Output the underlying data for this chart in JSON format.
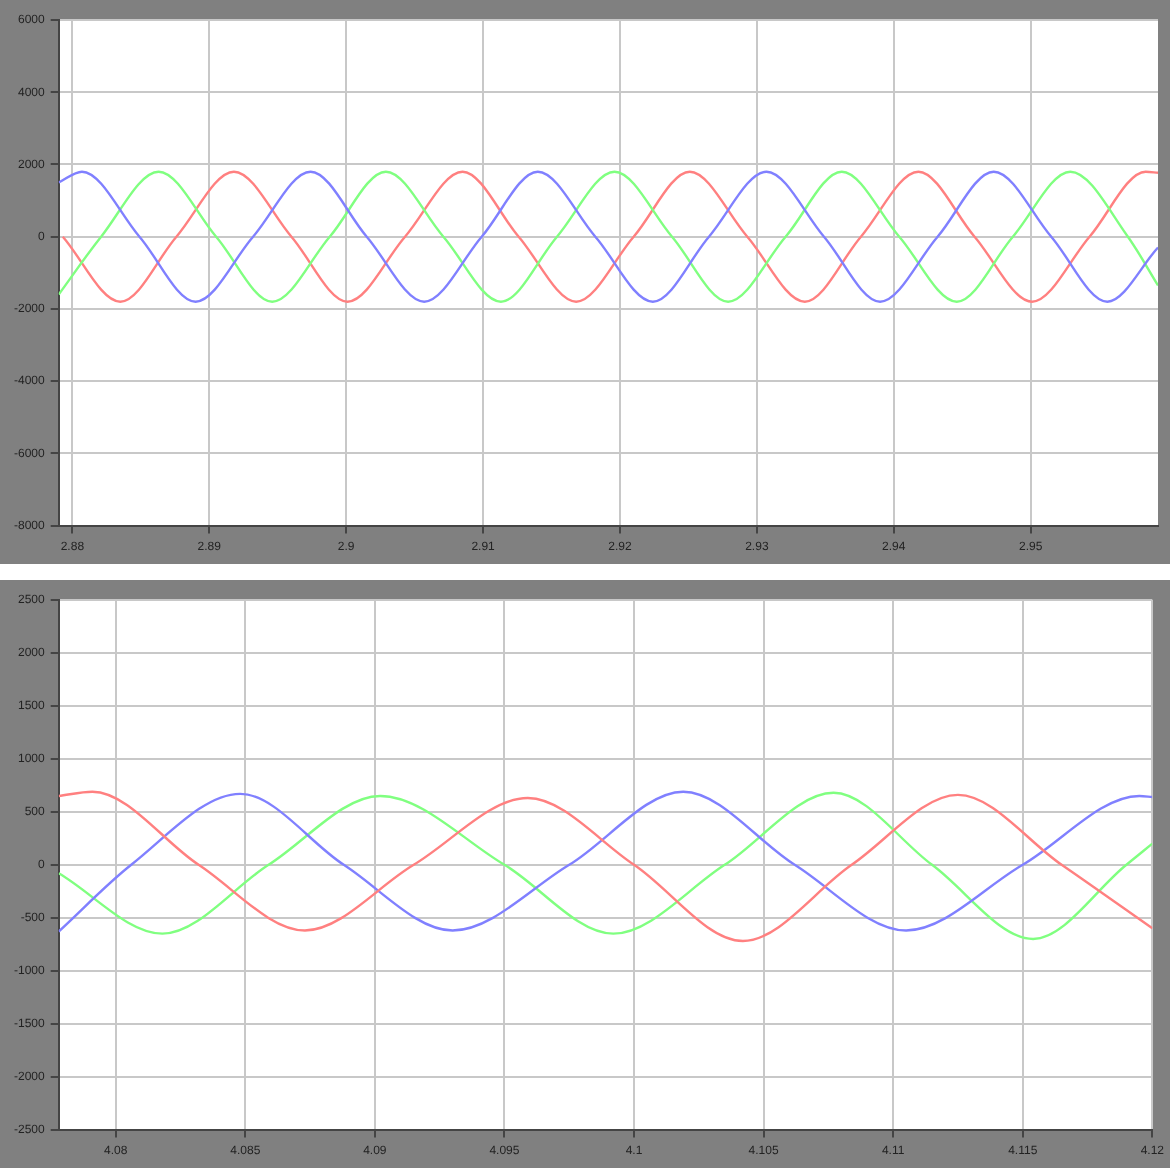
{
  "chart_data": [
    {
      "type": "line",
      "xlim": [
        2.879,
        2.9593
      ],
      "xticks": [
        2.88,
        2.89,
        2.9,
        2.91,
        2.92,
        2.93,
        2.94,
        2.95
      ],
      "ylim": [
        -8000,
        6000
      ],
      "yticks": [
        -8000,
        -6000,
        -4000,
        -2000,
        0,
        2000,
        4000,
        6000
      ],
      "grid": true,
      "legend": false,
      "marker": "none",
      "line_style": "solid",
      "series": [
        {
          "color": "#8080ff",
          "x": [
            2.879,
            2.8807,
            2.8849,
            2.889,
            2.8932,
            2.8974,
            2.9015,
            2.9057,
            2.9099,
            2.914,
            2.9182,
            2.9224,
            2.9265,
            2.9307,
            2.9349,
            2.939,
            2.9432,
            2.9473,
            2.9515,
            2.9556,
            2.9593
          ],
          "values": [
            1500,
            1800,
            0,
            -1800,
            0,
            1800,
            0,
            -1800,
            0,
            1800,
            0,
            -1800,
            0,
            1800,
            0,
            -1800,
            0,
            1800,
            0,
            -1800,
            -300
          ]
        },
        {
          "color": "#80ff80",
          "x": [
            2.879,
            2.8821,
            2.8863,
            2.8905,
            2.8946,
            2.8988,
            2.9029,
            2.9071,
            2.9113,
            2.9154,
            2.9196,
            2.9238,
            2.9279,
            2.9321,
            2.9362,
            2.9404,
            2.9446,
            2.9487,
            2.9529,
            2.9571,
            2.9593
          ],
          "values": [
            -1600,
            0,
            1800,
            0,
            -1800,
            0,
            1800,
            0,
            -1800,
            0,
            1800,
            0,
            -1800,
            0,
            1800,
            0,
            -1800,
            0,
            1800,
            0,
            -1350
          ]
        },
        {
          "color": "#ff8080",
          "x": [
            2.8793,
            2.8835,
            2.8876,
            2.8918,
            2.896,
            2.9001,
            2.9043,
            2.9085,
            2.9126,
            2.9168,
            2.921,
            2.9251,
            2.9293,
            2.9335,
            2.9376,
            2.9418,
            2.9459,
            2.9501,
            2.9543,
            2.9584,
            2.9593
          ],
          "values": [
            0,
            -1800,
            0,
            1800,
            0,
            -1800,
            0,
            1800,
            0,
            -1800,
            0,
            1800,
            0,
            -1800,
            0,
            1800,
            0,
            -1800,
            0,
            1800,
            1770
          ]
        }
      ]
    },
    {
      "type": "line",
      "xlim": [
        4.0778,
        4.12
      ],
      "xticks": [
        4.08,
        4.085,
        4.09,
        4.095,
        4.1,
        4.105,
        4.11,
        4.115,
        4.12
      ],
      "ylim": [
        -2500,
        2500
      ],
      "yticks": [
        -2500,
        -2000,
        -1500,
        -1000,
        -500,
        0,
        500,
        1000,
        1500,
        2000,
        2500
      ],
      "grid": true,
      "legend": false,
      "marker": "none",
      "line_style": "solid",
      "series": [
        {
          "color": "#ff8080",
          "x": [
            4.0778,
            4.0791,
            4.0832,
            4.0873,
            4.0915,
            4.0959,
            4.1,
            4.1042,
            4.1084,
            4.1125,
            4.1165,
            4.12
          ],
          "values": [
            650,
            690,
            0,
            -620,
            0,
            630,
            0,
            -720,
            0,
            660,
            0,
            -600
          ]
        },
        {
          "color": "#8080ff",
          "x": [
            4.0778,
            4.0806,
            4.0848,
            4.0888,
            4.093,
            4.0975,
            4.1019,
            4.1062,
            4.1105,
            4.115,
            4.1195,
            4.12
          ],
          "values": [
            -630,
            0,
            670,
            0,
            -620,
            0,
            690,
            0,
            -620,
            0,
            650,
            640
          ]
        },
        {
          "color": "#80ff80",
          "x": [
            4.0778,
            4.0818,
            4.0859,
            4.0902,
            4.095,
            4.0992,
            4.1035,
            4.1077,
            4.1115,
            4.1154,
            4.119,
            4.12
          ],
          "values": [
            -80,
            -650,
            0,
            650,
            0,
            -650,
            0,
            680,
            0,
            -700,
            0,
            200
          ]
        }
      ]
    }
  ]
}
